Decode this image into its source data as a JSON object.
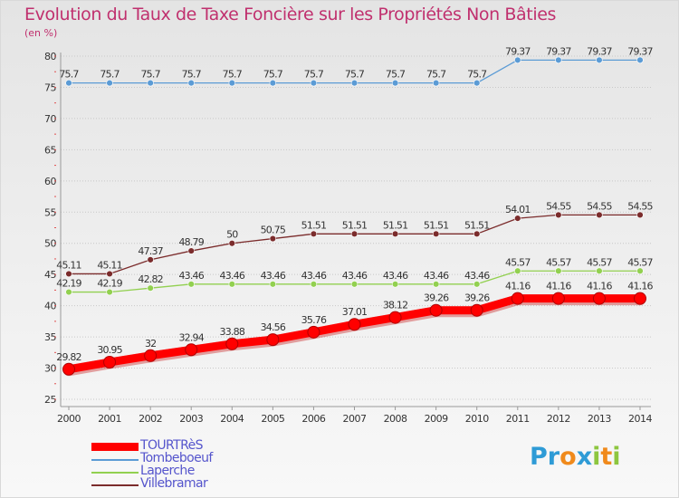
{
  "header": {
    "title": "Evolution du Taux de Taxe Foncière sur les Propriétés Non Bâties",
    "subtitle": "(en %)"
  },
  "logo": {
    "text": "Proxiti",
    "letters": [
      "P",
      "r",
      "o",
      "x",
      "i",
      "t",
      "i"
    ],
    "colors": [
      "#2e9bd6",
      "#2e9bd6",
      "#f08a1c",
      "#2e9bd6",
      "#8dc63f",
      "#f08a1c",
      "#8dc63f"
    ]
  },
  "chart_data": {
    "type": "line",
    "title": "Evolution du Taux de Taxe Foncière sur les Propriétés Non Bâties",
    "ylabel": "(en %)",
    "xlabel": "",
    "x": [
      2000,
      2001,
      2002,
      2003,
      2004,
      2005,
      2006,
      2007,
      2008,
      2009,
      2010,
      2011,
      2012,
      2013,
      2014
    ],
    "ylim": [
      25,
      80
    ],
    "yticks": [
      25,
      30,
      35,
      40,
      45,
      50,
      55,
      60,
      65,
      70,
      75,
      80
    ],
    "grid": "horizontal",
    "legend_position": "bottom-left",
    "series": [
      {
        "name": "TOURTRèS",
        "color": "#ff0000",
        "values": [
          29.82,
          30.95,
          32,
          32.94,
          33.88,
          34.56,
          35.76,
          37.01,
          38.12,
          39.26,
          39.26,
          41.16,
          41.16,
          41.16,
          41.16
        ],
        "labels": [
          "29.82",
          "30.95",
          "32",
          "32.94",
          "33.88",
          "34.56",
          "35.76",
          "37.01",
          "38.12",
          "39.26",
          "39.26",
          "41.16",
          "41.16",
          "41.16",
          "41.16"
        ]
      },
      {
        "name": "Tombeboeuf",
        "color": "#5b9bd5",
        "values": [
          75.7,
          75.7,
          75.7,
          75.7,
          75.7,
          75.7,
          75.7,
          75.7,
          75.7,
          75.7,
          75.7,
          79.37,
          79.37,
          79.37,
          79.37
        ],
        "labels": [
          "75.7",
          "75.7",
          "75.7",
          "75.7",
          "75.7",
          "75.7",
          "75.7",
          "75.7",
          "75.7",
          "75.7",
          "75.7",
          "79.37",
          "79.37",
          "79.37",
          "79.37"
        ]
      },
      {
        "name": "Laperche",
        "color": "#92d050",
        "values": [
          42.19,
          42.19,
          42.82,
          43.46,
          43.46,
          43.46,
          43.46,
          43.46,
          43.46,
          43.46,
          43.46,
          45.57,
          45.57,
          45.57,
          45.57
        ],
        "labels": [
          "42.19",
          "42.19",
          "42.82",
          "43.46",
          "43.46",
          "43.46",
          "43.46",
          "43.46",
          "43.46",
          "43.46",
          "43.46",
          "45.57",
          "45.57",
          "45.57",
          "45.57"
        ]
      },
      {
        "name": "Villebramar",
        "color": "#7b2c2c",
        "values": [
          45.11,
          45.11,
          47.37,
          48.79,
          50,
          50.75,
          51.51,
          51.51,
          51.51,
          51.51,
          51.51,
          54.01,
          54.55,
          54.55,
          54.55
        ],
        "labels": [
          "45.11",
          "45.11",
          "47.37",
          "48.79",
          "50",
          "50.75",
          "51.51",
          "51.51",
          "51.51",
          "51.51",
          "51.51",
          "54.01",
          "54.55",
          "54.55",
          "54.55"
        ]
      }
    ]
  }
}
